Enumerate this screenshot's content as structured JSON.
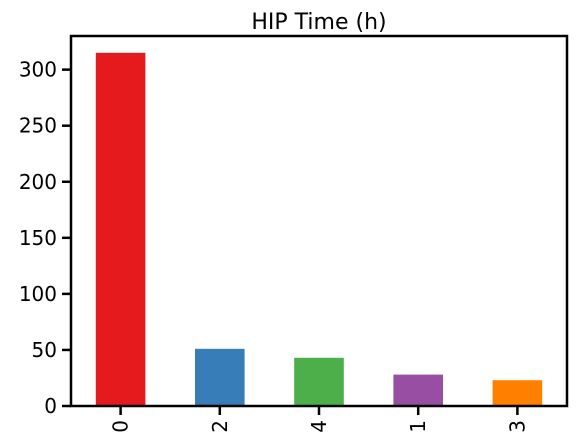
{
  "chart_data": {
    "type": "bar",
    "title": "HIP Time (h)",
    "xlabel": "",
    "ylabel": "",
    "categories": [
      "0",
      "2",
      "4",
      "1",
      "3"
    ],
    "values": [
      315,
      51,
      43,
      28,
      23
    ],
    "colors": [
      "#e41a1c",
      "#377eb8",
      "#4daf4a",
      "#984ea3",
      "#ff7f00"
    ],
    "ylim": [
      0,
      330
    ],
    "yticks": [
      0,
      50,
      100,
      150,
      200,
      250,
      300
    ],
    "ytick_labels": [
      "0",
      "50",
      "100",
      "150",
      "200",
      "250",
      "300"
    ],
    "grid": false,
    "legend": "none"
  }
}
